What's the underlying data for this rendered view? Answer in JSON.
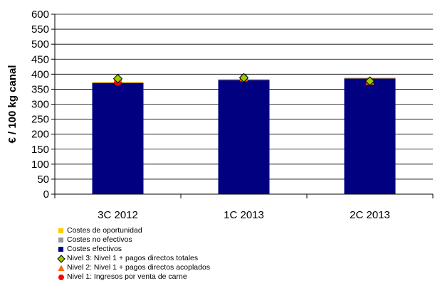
{
  "chart_data": {
    "type": "bar",
    "ylabel": "€ / 100 kg canal",
    "xlabel": "",
    "ylim": [
      0,
      600
    ],
    "y_ticks": [
      0,
      50,
      100,
      150,
      200,
      250,
      300,
      350,
      400,
      450,
      500,
      550,
      600
    ],
    "grid": true,
    "categories": [
      "3C 2012",
      "1C 2013",
      "2C 2013"
    ],
    "stacked": true,
    "series": [
      {
        "name": "Costes efectivos",
        "kind": "bar",
        "color": "#000080",
        "values": [
          371,
          381,
          386
        ]
      },
      {
        "name": "Costes no efectivos",
        "kind": "bar",
        "color": "#999999",
        "values": [
          0,
          0,
          0
        ]
      },
      {
        "name": "Costes de oportunidad",
        "kind": "bar",
        "color": "#FFCC00",
        "values": [
          3,
          3,
          3
        ]
      },
      {
        "name": "Nivel 1: Ingresos por venta de carne",
        "kind": "marker",
        "marker": "circle",
        "color": "#FF0000",
        "values": [
          375,
          387,
          376
        ]
      },
      {
        "name": "Nivel 2: Nivel 1 + pagos directos acoplados",
        "kind": "marker",
        "marker": "triangle",
        "color": "#FF6600",
        "values": [
          385,
          387,
          376
        ]
      },
      {
        "name": "Nivel 3: Nivel 1 + pagos directos totales",
        "kind": "marker",
        "marker": "diamond",
        "color": "#99CC00",
        "values": [
          385,
          388,
          377
        ]
      }
    ],
    "legend_order": [
      2,
      1,
      0,
      5,
      4,
      3
    ],
    "legend_position": "bottom-left"
  }
}
